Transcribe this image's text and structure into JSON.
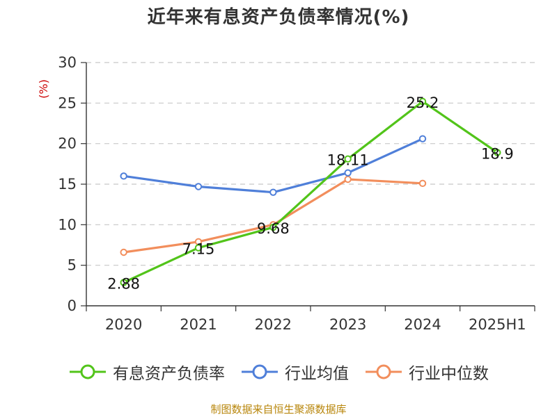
{
  "colors": {
    "series_0": "#52c41a",
    "series_1": "#4f7fd9",
    "series_2": "#f28e5c",
    "source": "#b8860b",
    "unit": "#cc0000"
  },
  "source_text": "制图数据来自恒生聚源数据库",
  "chart_data": {
    "type": "line",
    "title": "近年来有息资产负债率情况(%)",
    "ylabel": "(%)",
    "xlabel": "",
    "categories": [
      "2020",
      "2021",
      "2022",
      "2023",
      "2024",
      "2025H1"
    ],
    "ylim": [
      0,
      30
    ],
    "yticks": [
      0,
      5,
      10,
      15,
      20,
      25,
      30
    ],
    "grid": true,
    "legend_position": "bottom",
    "series": [
      {
        "name": "有息资产负债率",
        "values": [
          2.88,
          7.15,
          9.68,
          18.11,
          25.2,
          18.9
        ],
        "labels": [
          "2.88",
          "7.15",
          "9.68",
          "18.11",
          "25.2",
          "18.9"
        ]
      },
      {
        "name": "行业均值",
        "values": [
          16.0,
          14.7,
          14.0,
          16.4,
          20.6,
          null
        ]
      },
      {
        "name": "行业中位数",
        "values": [
          6.6,
          7.9,
          10.0,
          15.6,
          15.1,
          null
        ]
      }
    ]
  }
}
